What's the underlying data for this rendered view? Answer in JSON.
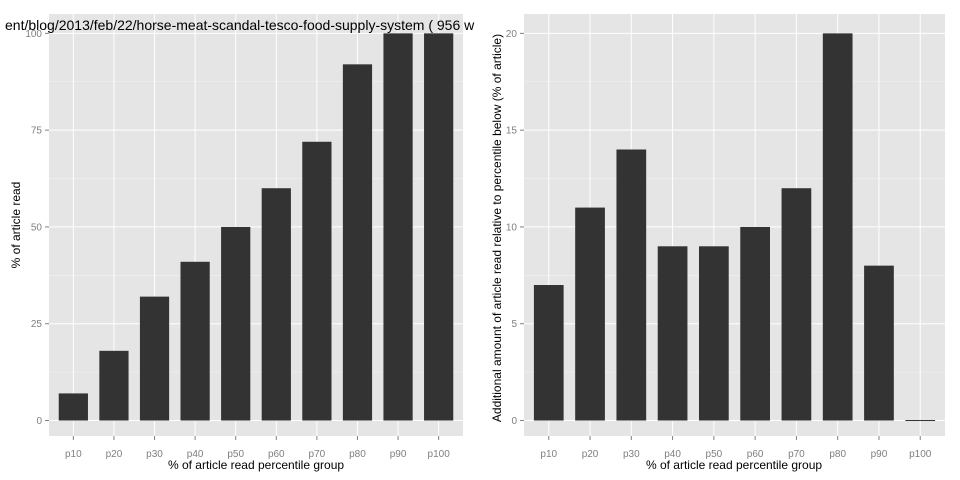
{
  "chart_data": [
    {
      "type": "bar",
      "title": "ent/blog/2013/feb/22/horse-meat-scandal-tesco-food-supply-system ( 956 w",
      "xlabel": "% of article read percentile group",
      "ylabel": "% of article read",
      "categories": [
        "p10",
        "p20",
        "p30",
        "p40",
        "p50",
        "p60",
        "p70",
        "p80",
        "p90",
        "p100"
      ],
      "values": [
        7,
        18,
        32,
        41,
        50,
        60,
        72,
        92,
        100,
        100
      ],
      "ylim": [
        -4,
        105
      ],
      "yticks": [
        0,
        25,
        50,
        75,
        100
      ],
      "grid": true
    },
    {
      "type": "bar",
      "title": "",
      "xlabel": "% of article read percentile group",
      "ylabel": "Additional amount of article read relative to percentile below (% of article)",
      "categories": [
        "p10",
        "p20",
        "p30",
        "p40",
        "p50",
        "p60",
        "p70",
        "p80",
        "p90",
        "p100"
      ],
      "values": [
        7,
        11,
        14,
        9,
        9,
        10,
        12,
        20,
        8,
        0
      ],
      "ylim": [
        -0.8,
        21
      ],
      "yticks": [
        0,
        5,
        10,
        15,
        20
      ],
      "grid": true
    }
  ]
}
